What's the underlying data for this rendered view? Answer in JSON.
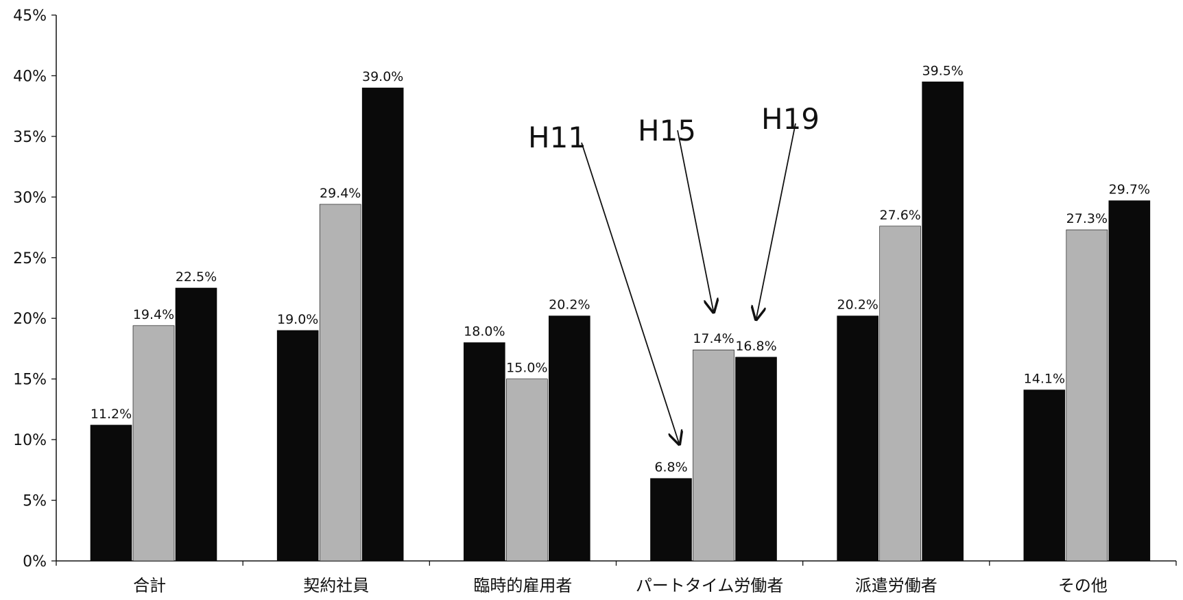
{
  "chart_data": {
    "type": "bar",
    "categories": [
      "合計",
      "契約社員",
      "臨時的雇用者",
      "パートタイム労働者",
      "派遣労働者",
      "その他"
    ],
    "series": [
      {
        "name": "H11",
        "values": [
          11.2,
          19.0,
          18.0,
          6.8,
          20.2,
          14.1
        ],
        "color": "#0a0a0a"
      },
      {
        "name": "H15",
        "values": [
          19.4,
          29.4,
          15.0,
          17.4,
          27.6,
          27.3
        ],
        "color": "#b3b3b3"
      },
      {
        "name": "H19",
        "values": [
          22.5,
          39.0,
          20.2,
          16.8,
          39.5,
          29.7
        ],
        "color": "#0a0a0a"
      }
    ],
    "data_labels": [
      [
        "11.2%",
        "19.0%",
        "18.0%",
        "6.8%",
        "20.2%",
        "14.1%"
      ],
      [
        "19.4%",
        "29.4%",
        "15.0%",
        "17.4%",
        "27.6%",
        "27.3%"
      ],
      [
        "22.5%",
        "39.0%",
        "20.2%",
        "16.8%",
        "39.5%",
        "29.7%"
      ]
    ],
    "ylim": [
      0,
      45
    ],
    "yticks": [
      0,
      5,
      10,
      15,
      20,
      25,
      30,
      35,
      40,
      45
    ],
    "ytick_labels": [
      "0%",
      "5%",
      "10%",
      "15%",
      "20%",
      "25%",
      "30%",
      "35%",
      "40%",
      "45%"
    ],
    "grid": false,
    "legend": "none",
    "annotations": [
      {
        "text": "H11",
        "points_to_series": 0,
        "category": 3
      },
      {
        "text": "H15",
        "points_to_series": 1,
        "category": 3
      },
      {
        "text": "H19",
        "points_to_series": 2,
        "category": 3
      }
    ]
  }
}
